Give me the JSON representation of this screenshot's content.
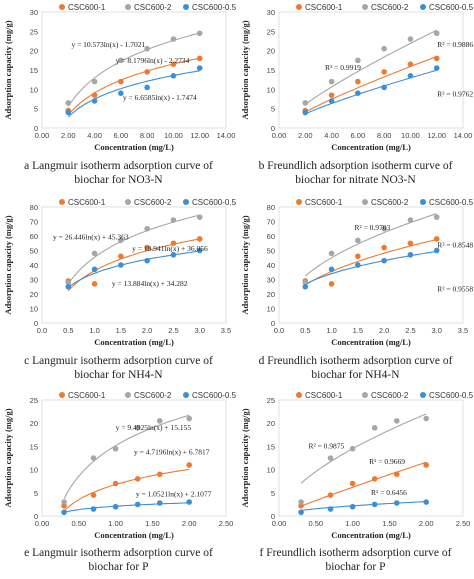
{
  "colors": {
    "s1": "#ef7a2f",
    "s2": "#a6a6a6",
    "s3": "#3b8fd8"
  },
  "chart_data": [
    {
      "id": "a",
      "type": "scatter",
      "caption_lines": [
        "a  Langmuir isotherm adsorption curve of",
        "biochar for NO3-N"
      ],
      "ylabel": "Adsorption capacity (mg/g)",
      "xlabel": "Concentration (mg/L)",
      "xlim": [
        0,
        14
      ],
      "ylim": [
        0,
        30
      ],
      "xticks": [
        "0.00",
        "2.00",
        "4.00",
        "6.00",
        "8.00",
        "10.00",
        "12.00",
        "14.00"
      ],
      "xtick_values": [
        0,
        2,
        4,
        6,
        8,
        10,
        12,
        14
      ],
      "yticks": [
        "0",
        "5",
        "10",
        "15",
        "20",
        "25",
        "30"
      ],
      "ytick_values": [
        0,
        5,
        10,
        15,
        20,
        25,
        30
      ],
      "legend": [
        "CSC600-1",
        "CSC600-2",
        "CSC600-0.5"
      ],
      "x": [
        2,
        4,
        6,
        8,
        10,
        12
      ],
      "series": [
        {
          "name": "CSC600-1",
          "values": [
            4.5,
            8.5,
            12.0,
            14.5,
            16.5,
            18.0
          ]
        },
        {
          "name": "CSC600-2",
          "values": [
            6.5,
            12.0,
            17.5,
            20.5,
            23.0,
            24.5
          ]
        },
        {
          "name": "CSC600-0.5",
          "values": [
            4.0,
            7.0,
            9.0,
            10.5,
            13.5,
            15.5
          ]
        }
      ],
      "fit": "log",
      "fits": [
        {
          "series": "CSC600-1",
          "a": 8.1796,
          "b": -2.2734
        },
        {
          "series": "CSC600-2",
          "a": 10.573,
          "b": -1.7021
        },
        {
          "series": "CSC600-0.5",
          "a": 6.6585,
          "b": -1.7474
        }
      ],
      "annotations": [
        "y = 10.573ln(x) - 1.7021",
        "y = 8.1796ln(x) - 2.2734",
        "y = 6.6585ln(x) - 1.7474"
      ]
    },
    {
      "id": "b",
      "type": "scatter",
      "caption_lines": [
        "b  Freundlich adsorption isotherm curve of",
        "biochar for nitrate NO3-N"
      ],
      "ylabel": "Adsorption capacity (mg/g)",
      "xlabel": "Concentration (mg/L)",
      "xlim": [
        0,
        14
      ],
      "ylim": [
        0,
        30
      ],
      "xticks": [
        "0.00",
        "2.00",
        "4.00",
        "6.00",
        "8.00",
        "10.00",
        "12.00",
        "14.00"
      ],
      "xtick_values": [
        0,
        2,
        4,
        6,
        8,
        10,
        12,
        14
      ],
      "yticks": [
        "0",
        "5",
        "10",
        "15",
        "20",
        "25",
        "30"
      ],
      "ytick_values": [
        0,
        5,
        10,
        15,
        20,
        25,
        30
      ],
      "legend": [
        "CSC600-1",
        "CSC600-2",
        "CSC600-0.5"
      ],
      "x": [
        2,
        4,
        6,
        8,
        10,
        12
      ],
      "series": [
        {
          "name": "CSC600-1",
          "values": [
            4.5,
            8.5,
            12.0,
            14.5,
            16.5,
            18.0
          ]
        },
        {
          "name": "CSC600-2",
          "values": [
            6.5,
            12.0,
            17.5,
            20.5,
            23.0,
            24.5
          ]
        },
        {
          "name": "CSC600-0.5",
          "values": [
            4.0,
            7.0,
            9.0,
            10.5,
            13.5,
            15.5
          ]
        }
      ],
      "fit": "power",
      "fits": [
        {
          "series": "CSC600-1",
          "a": 2.35,
          "b": 0.83
        },
        {
          "series": "CSC600-2",
          "a": 3.55,
          "b": 0.79
        },
        {
          "series": "CSC600-0.5",
          "a": 2.15,
          "b": 0.78
        }
      ],
      "annotations": [
        "R² = 0.9919",
        "R² = 0.9886",
        "R² = 0.9762"
      ]
    },
    {
      "id": "c",
      "type": "scatter",
      "caption_lines": [
        "c  Langmuir isotherm adsorption curve of",
        "biochar for NH4-N"
      ],
      "ylabel": "Adsorption capacity (mg/g)",
      "xlabel": "Concentration (mg/L)",
      "xlim": [
        0,
        3.5
      ],
      "ylim": [
        0,
        80
      ],
      "xticks": [
        "0.0",
        "0.5",
        "1.0",
        "1.5",
        "2.0",
        "2.5",
        "3.0",
        "3.5"
      ],
      "xtick_values": [
        0,
        0.5,
        1,
        1.5,
        2,
        2.5,
        3,
        3.5
      ],
      "yticks": [
        "0",
        "10",
        "20",
        "30",
        "40",
        "50",
        "60",
        "70",
        "80"
      ],
      "ytick_values": [
        0,
        10,
        20,
        30,
        40,
        50,
        60,
        70,
        80
      ],
      "legend": [
        "CSC600-1",
        "CSC600-2",
        "CSC600-0.5"
      ],
      "x": [
        0.5,
        1.0,
        1.5,
        2.0,
        2.5,
        3.0
      ],
      "series": [
        {
          "name": "CSC600-1",
          "values": [
            29,
            27,
            46,
            52,
            55,
            58
          ]
        },
        {
          "name": "CSC600-2",
          "values": [
            28,
            48,
            57,
            65,
            71,
            73
          ]
        },
        {
          "name": "CSC600-0.5",
          "values": [
            25,
            37,
            40,
            43,
            47,
            50
          ]
        }
      ],
      "fit": "log",
      "fits": [
        {
          "series": "CSC600-1",
          "a": 19.941,
          "b": 36.056
        },
        {
          "series": "CSC600-2",
          "a": 26.446,
          "b": 45.363
        },
        {
          "series": "CSC600-0.5",
          "a": 13.884,
          "b": 34.282
        }
      ],
      "annotations": [
        "y = 26.446ln(x) + 45.363",
        "y = 19.941ln(x) + 36.056",
        "y = 13.884ln(x) + 34.282"
      ]
    },
    {
      "id": "d",
      "type": "scatter",
      "caption_lines": [
        "d  Freundlich isotherm adsorption curve of",
        "biochar for NH4-N"
      ],
      "ylabel": "Adsorption capacity (mg/g)",
      "xlabel": "Concentration (mg/L)",
      "xlim": [
        0,
        3.5
      ],
      "ylim": [
        0,
        80
      ],
      "xticks": [
        "0.0",
        "0.5",
        "1.0",
        "1.5",
        "2.0",
        "2.5",
        "3.0",
        "3.5"
      ],
      "xtick_values": [
        0,
        0.5,
        1,
        1.5,
        2,
        2.5,
        3,
        3.5
      ],
      "yticks": [
        "0",
        "10",
        "20",
        "30",
        "40",
        "50",
        "60",
        "70",
        "80"
      ],
      "ytick_values": [
        0,
        10,
        20,
        30,
        40,
        50,
        60,
        70,
        80
      ],
      "legend": [
        "CSC600-1",
        "CSC600-2",
        "CSC600-0.5"
      ],
      "x": [
        0.5,
        1.0,
        1.5,
        2.0,
        2.5,
        3.0
      ],
      "series": [
        {
          "name": "CSC600-1",
          "values": [
            29,
            27,
            46,
            52,
            55,
            58
          ]
        },
        {
          "name": "CSC600-2",
          "values": [
            28,
            48,
            57,
            65,
            71,
            73
          ]
        },
        {
          "name": "CSC600-0.5",
          "values": [
            25,
            37,
            40,
            43,
            47,
            50
          ]
        }
      ],
      "fit": "power",
      "fits": [
        {
          "series": "CSC600-1",
          "a": 35.5,
          "b": 0.44
        },
        {
          "series": "CSC600-2",
          "a": 45.0,
          "b": 0.47
        },
        {
          "series": "CSC600-0.5",
          "a": 34.0,
          "b": 0.34
        }
      ],
      "annotations": [
        "R² = 0.9703",
        "R² = 0.8548",
        "R² = 0.9558"
      ]
    },
    {
      "id": "e",
      "type": "scatter",
      "caption_lines": [
        "e  Langmuir isotherm adsorption curve of",
        "biochar for P"
      ],
      "ylabel": "Adsorption capacity (mg/g)",
      "xlabel": "Concentration (mg/L)",
      "xlim": [
        0,
        2.5
      ],
      "ylim": [
        0,
        25
      ],
      "xticks": [
        "0.00",
        "0.50",
        "1.00",
        "1.50",
        "2.00",
        "2.50"
      ],
      "xtick_values": [
        0,
        0.5,
        1,
        1.5,
        2,
        2.5
      ],
      "yticks": [
        "0",
        "5",
        "10",
        "15",
        "20",
        "25"
      ],
      "ytick_values": [
        0,
        5,
        10,
        15,
        20,
        25
      ],
      "legend": [
        "CSC600-1",
        "CSC600-2",
        "CSC600-0.5"
      ],
      "x": [
        0.3,
        0.7,
        1.0,
        1.3,
        1.6,
        2.0
      ],
      "series": [
        {
          "name": "CSC600-1",
          "values": [
            2.2,
            4.5,
            7.0,
            8.0,
            9.0,
            11.0
          ]
        },
        {
          "name": "CSC600-2",
          "values": [
            3.0,
            12.5,
            14.5,
            19.0,
            20.5,
            21.0
          ]
        },
        {
          "name": "CSC600-0.5",
          "values": [
            0.8,
            1.5,
            2.0,
            2.5,
            2.8,
            3.0
          ]
        }
      ],
      "fit": "log",
      "fits": [
        {
          "series": "CSC600-1",
          "a": 4.7196,
          "b": 6.7817
        },
        {
          "series": "CSC600-2",
          "a": 9.4925,
          "b": 15.155
        },
        {
          "series": "CSC600-0.5",
          "a": 1.0521,
          "b": 2.1077
        }
      ],
      "annotations": [
        "y = 9.4925ln(x) + 15.155",
        "y = 4.7196ln(x) + 6.7817",
        "y = 1.0521ln(x) + 2.1077"
      ]
    },
    {
      "id": "f",
      "type": "scatter",
      "caption_lines": [
        "f  Freundlich isotherm adsorption curve of",
        "biochar for P"
      ],
      "ylabel": "Adsorption capacity (mg/g)",
      "xlabel": "Concentration (mg/L)",
      "xlim": [
        0,
        2.5
      ],
      "ylim": [
        0,
        25
      ],
      "xticks": [
        "0.00",
        "0.50",
        "1.00",
        "1.50",
        "2.00",
        "2.50"
      ],
      "xtick_values": [
        0,
        0.5,
        1,
        1.5,
        2,
        2.5
      ],
      "yticks": [
        "0",
        "5",
        "10",
        "15",
        "20",
        "25"
      ],
      "ytick_values": [
        0,
        5,
        10,
        15,
        20,
        25
      ],
      "legend": [
        "CSC600-1",
        "CSC600-2",
        "CSC600-0.5"
      ],
      "x": [
        0.3,
        0.7,
        1.0,
        1.3,
        1.6,
        2.0
      ],
      "series": [
        {
          "name": "CSC600-1",
          "values": [
            2.2,
            4.5,
            7.0,
            8.0,
            9.0,
            11.0
          ]
        },
        {
          "name": "CSC600-2",
          "values": [
            3.0,
            12.5,
            14.5,
            19.0,
            20.5,
            21.0
          ]
        },
        {
          "name": "CSC600-0.5",
          "values": [
            0.8,
            1.5,
            2.0,
            2.5,
            2.8,
            3.0
          ]
        }
      ],
      "fit": "power",
      "fits": [
        {
          "series": "CSC600-1",
          "a": 6.2,
          "b": 0.9
        },
        {
          "series": "CSC600-2",
          "a": 14.5,
          "b": 0.6
        },
        {
          "series": "CSC600-0.5",
          "a": 2.2,
          "b": 0.5
        }
      ],
      "annotations": [
        "R² = 0.9875",
        "R² = 0.9669",
        "R² = 0.6456"
      ]
    }
  ]
}
